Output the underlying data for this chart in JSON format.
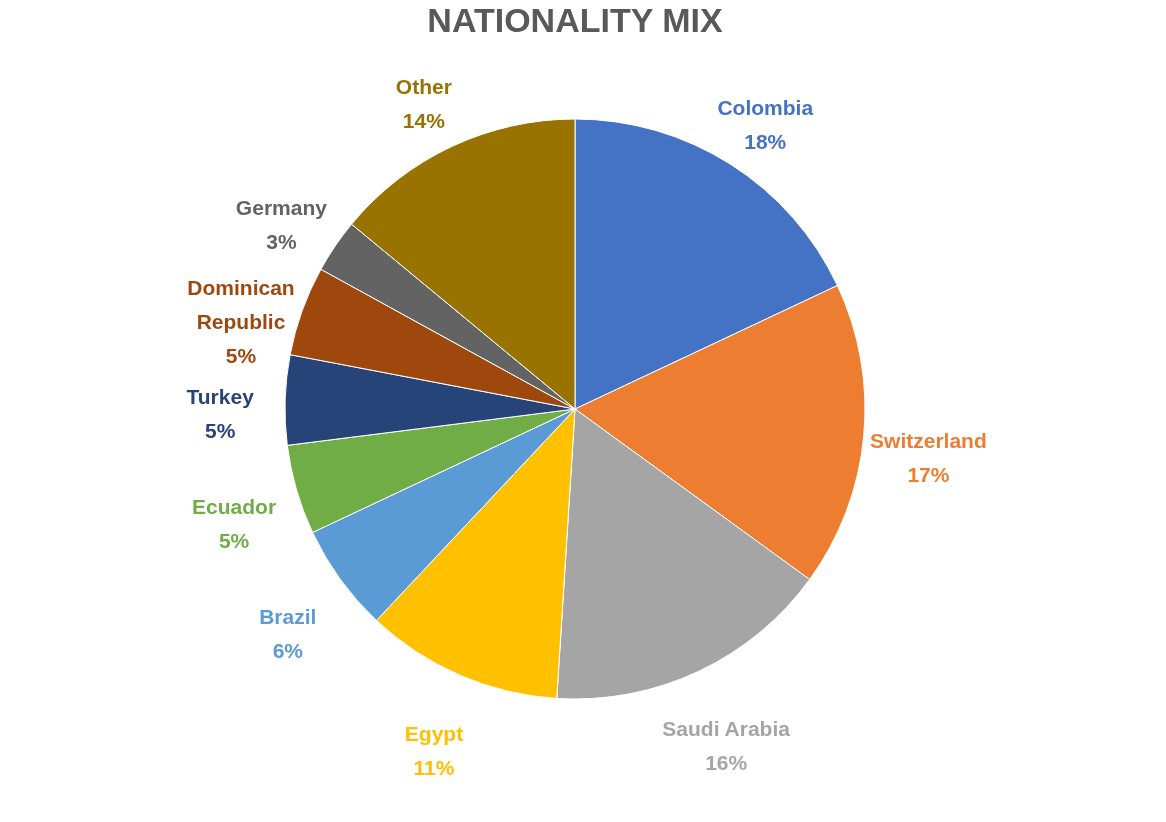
{
  "chart_data": {
    "type": "pie",
    "title": "NATIONALITY MIX",
    "categories": [
      "Colombia",
      "Switzerland",
      "Saudi Arabia",
      "Egypt",
      "Brazil",
      "Ecuador",
      "Turkey",
      "Dominican Republic",
      "Germany",
      "Other"
    ],
    "values": [
      18,
      17,
      16,
      11,
      6,
      5,
      5,
      5,
      3,
      14
    ],
    "value_labels": [
      "18%",
      "17%",
      "16%",
      "11%",
      "6%",
      "5%",
      "5%",
      "5%",
      "3%",
      "14%"
    ],
    "colors": [
      "#4472c4",
      "#ed7d31",
      "#a5a5a5",
      "#ffc000",
      "#5b9bd5",
      "#70ad47",
      "#264478",
      "#9e480e",
      "#636363",
      "#997300"
    ],
    "legend": false
  }
}
